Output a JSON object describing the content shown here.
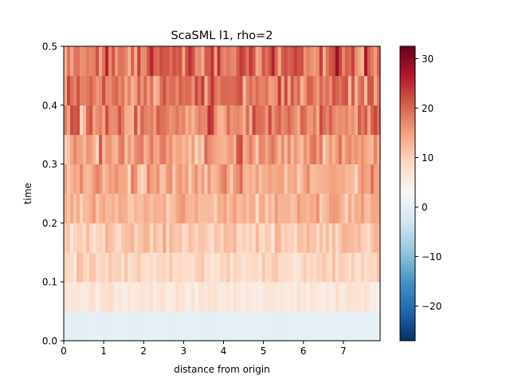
{
  "chart_data": {
    "type": "heatmap",
    "title": "ScaSML l1, rho=2",
    "xlabel": "distance from origin",
    "ylabel": "time",
    "xlim": [
      0,
      7.92
    ],
    "ylim": [
      0,
      0.5
    ],
    "x_ticks": [
      "0",
      "1",
      "2",
      "3",
      "4",
      "5",
      "6",
      "7"
    ],
    "y_ticks": [
      "0.0",
      "0.1",
      "0.2",
      "0.3",
      "0.4",
      "0.5"
    ],
    "time_bands": [
      0.0,
      0.05,
      0.1,
      0.15,
      0.2,
      0.25,
      0.3,
      0.35,
      0.4,
      0.45
    ],
    "band_height": 0.05,
    "columns_per_band": 99,
    "band_levels": [
      {
        "time": 0.0,
        "mean": 0.0,
        "spread": 0.0
      },
      {
        "time": 0.05,
        "mean": 6.0,
        "spread": 2.0
      },
      {
        "time": 0.1,
        "mean": 9.0,
        "spread": 2.5
      },
      {
        "time": 0.15,
        "mean": 10.5,
        "spread": 3.0
      },
      {
        "time": 0.2,
        "mean": 13.0,
        "spread": 3.5
      },
      {
        "time": 0.25,
        "mean": 14.0,
        "spread": 4.0
      },
      {
        "time": 0.3,
        "mean": 15.0,
        "spread": 5.0
      },
      {
        "time": 0.35,
        "mean": 17.5,
        "spread": 5.5
      },
      {
        "time": 0.4,
        "mean": 18.5,
        "spread": 6.0
      },
      {
        "time": 0.45,
        "mean": 19.5,
        "spread": 6.5
      }
    ],
    "colorbar": {
      "colormap": "RdBu_r",
      "vmin": -27,
      "vmax": 32.5,
      "ticks": [
        -20,
        -10,
        0,
        10,
        20,
        30
      ],
      "tick_labels": [
        "−20",
        "−10",
        "0",
        "10",
        "20",
        "30"
      ]
    },
    "grid": false
  }
}
